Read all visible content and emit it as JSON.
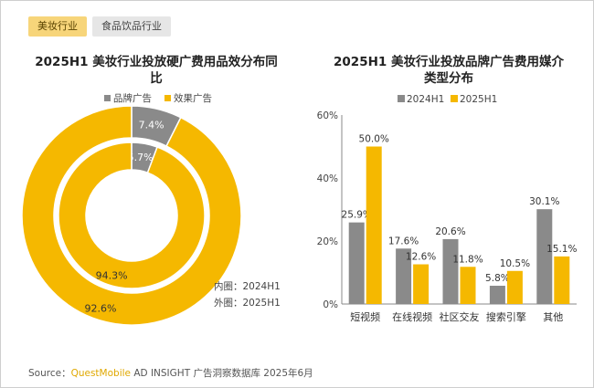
{
  "tabs": [
    {
      "label": "美妆行业",
      "active": true
    },
    {
      "label": "食品饮品行业",
      "active": false
    }
  ],
  "colors": {
    "brand": "#8a8a8a",
    "effect": "#f5b800",
    "accent": "#f7d57a"
  },
  "chart_data": [
    {
      "type": "pie",
      "title": "2025H1 美妆行业投放硬广费用品效分布同比",
      "series_names": [
        "品牌广告",
        "效果广告"
      ],
      "rings": [
        {
          "name": "2024H1",
          "position": "inner",
          "values": [
            5.7,
            94.3
          ],
          "labels": [
            "5.7%",
            "94.3%"
          ]
        },
        {
          "name": "2025H1",
          "position": "outer",
          "values": [
            7.4,
            92.6
          ],
          "labels": [
            "7.4%",
            "92.6%"
          ]
        }
      ],
      "ring_notes": [
        "内圈：2024H1",
        "外圈：2025H1"
      ],
      "legend_position": "top"
    },
    {
      "type": "bar",
      "title": "2025H1 美妆行业投放品牌广告费用媒介类型分布",
      "categories": [
        "短视频",
        "在线视频",
        "社区交友",
        "搜索引擎",
        "其他"
      ],
      "series": [
        {
          "name": "2024H1",
          "values": [
            25.9,
            17.6,
            20.6,
            5.8,
            30.1
          ],
          "labels": [
            "25.9%",
            "17.6%",
            "20.6%",
            "5.8%",
            "30.1%"
          ]
        },
        {
          "name": "2025H1",
          "values": [
            50.0,
            12.6,
            11.8,
            10.5,
            15.1
          ],
          "labels": [
            "50.0%",
            "12.6%",
            "11.8%",
            "10.5%",
            "15.1%"
          ]
        }
      ],
      "ylim": [
        0,
        60
      ],
      "yticks": [
        "0%",
        "20%",
        "40%",
        "60%"
      ],
      "legend_position": "top"
    }
  ],
  "source": {
    "prefix": "Source：",
    "brand": "QuestMobile",
    "rest": " AD INSIGHT 广告洞察数据库 2025年6月"
  }
}
